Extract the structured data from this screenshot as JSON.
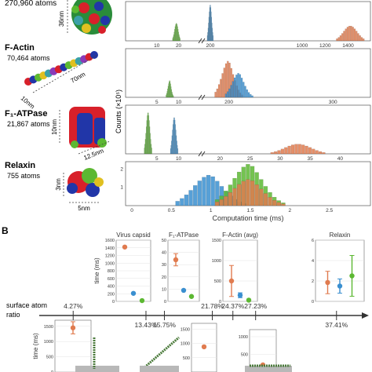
{
  "panel_b_label": "B",
  "molecules": [
    {
      "name": "",
      "atoms": "270,960 atoms",
      "dims": [
        "36nm"
      ]
    },
    {
      "name": "F-Actin",
      "atoms": "70,464 atoms",
      "dims": [
        "70nm",
        "10nm"
      ]
    },
    {
      "name": "F₁-ATPase",
      "atoms": "21,867 atoms",
      "dims": [
        "10nm",
        "12.5nm"
      ]
    },
    {
      "name": "Relaxin",
      "atoms": "755 atoms",
      "dims": [
        "3nm",
        "5nm"
      ]
    }
  ],
  "colors": {
    "orange": "#e07b4f",
    "blue": "#3a8fd0",
    "green": "#5cb832",
    "red": "#d8202a",
    "navy": "#2136a8"
  },
  "ylabel_shared": "Counts (×10⁵)",
  "chart_data": [
    {
      "type": "histogram",
      "panel": "virus-capsid-hist",
      "xticks_left": [
        "10",
        "20"
      ],
      "xticks_right": [
        "200",
        "1000",
        "1200",
        "1400"
      ],
      "ylabel": "",
      "series": [
        {
          "color": "green",
          "peak_x": 19,
          "relative_height": 0.45
        },
        {
          "color": "blue",
          "peak_x": 200,
          "relative_height": 0.92
        },
        {
          "color": "orange",
          "peak_x": 1420,
          "relative_height": 0.38
        }
      ]
    },
    {
      "type": "histogram",
      "panel": "f-actin-hist",
      "xticks_left": [
        "5",
        "10"
      ],
      "xticks_right": [
        "200",
        "300"
      ],
      "ylabel": "",
      "series": [
        {
          "color": "green",
          "peak_x": 8,
          "relative_height": 0.35
        },
        {
          "color": "orange",
          "peak_x": 200,
          "relative_height": 0.75
        },
        {
          "color": "blue",
          "peak_x": 210,
          "relative_height": 0.5
        }
      ]
    },
    {
      "type": "histogram",
      "panel": "f1-atpase-hist",
      "xticks_left": [
        "5",
        "10"
      ],
      "xticks_right": [
        "20",
        "25",
        "30",
        "35",
        "40"
      ],
      "ylabel": "Counts (×10⁵)",
      "series": [
        {
          "color": "green",
          "peak_x": 3,
          "relative_height": 0.85
        },
        {
          "color": "blue",
          "peak_x": 9,
          "relative_height": 0.75
        },
        {
          "color": "orange",
          "peak_x": 33,
          "relative_height": 0.2
        }
      ]
    },
    {
      "type": "histogram",
      "panel": "relaxin-hist",
      "xlabel": "Computation time (ms)",
      "xticks": [
        "0",
        "0.5",
        "1",
        "1.5",
        "2",
        "2.5"
      ],
      "yticks": [
        "1",
        "2"
      ],
      "series": [
        {
          "color": "blue",
          "peak_x": 1.0,
          "relative_height": 0.7
        },
        {
          "color": "green",
          "peak_x": 1.5,
          "relative_height": 0.95
        },
        {
          "color": "orange",
          "peak_x": 1.5,
          "relative_height": 0.6
        }
      ]
    },
    {
      "type": "scatter",
      "panel": "virus-capsid-time",
      "title": "Virus capsid",
      "ylabel": "time (ms)",
      "yticks": [
        "0",
        "200",
        "400",
        "600",
        "800",
        "1000",
        "1200",
        "1400",
        "1600"
      ],
      "ylim": [
        0,
        1600
      ],
      "points": [
        {
          "color": "orange",
          "y": 1420
        },
        {
          "color": "blue",
          "y": 210
        },
        {
          "color": "green",
          "y": 20
        }
      ]
    },
    {
      "type": "scatter",
      "panel": "f1-atpase-time",
      "title": "F₁-ATPase",
      "yticks": [
        "0",
        "10",
        "20",
        "30",
        "40",
        "50"
      ],
      "ylim": [
        0,
        50
      ],
      "points": [
        {
          "color": "orange",
          "y": 34,
          "err": 5
        },
        {
          "color": "blue",
          "y": 9
        },
        {
          "color": "green",
          "y": 4
        }
      ]
    },
    {
      "type": "scatter",
      "panel": "f-actin-time",
      "title": "F-Actin (avg)",
      "yticks": [
        "0",
        "500",
        "1000",
        "1500"
      ],
      "ylim": [
        0,
        1500
      ],
      "points": [
        {
          "color": "orange",
          "y": 500,
          "err": 380
        },
        {
          "color": "blue",
          "y": 150,
          "err": 60
        },
        {
          "color": "green",
          "y": 30
        }
      ]
    },
    {
      "type": "scatter",
      "panel": "relaxin-time",
      "title": "Relaxin",
      "yticks": [
        "0",
        "2",
        "4",
        "6"
      ],
      "ylim": [
        0,
        6
      ],
      "points": [
        {
          "color": "orange",
          "y": 1.85,
          "err": 1.1
        },
        {
          "color": "blue",
          "y": 1.5,
          "err": 0.7
        },
        {
          "color": "green",
          "y": 2.5,
          "err": 2.0
        }
      ]
    },
    {
      "type": "number-line",
      "panel": "surface-atom-ratio",
      "label_lines": [
        "surface atom",
        "ratio"
      ],
      "ticks_above": [
        "4.27%",
        "21.78%",
        "24.37%",
        "27.23%"
      ],
      "ticks_below": [
        "13.43%",
        "15.75%",
        "37.41%"
      ]
    },
    {
      "type": "scatter",
      "panel": "bottom-time-1",
      "ylabel": "time (ms)",
      "yticks": [
        "0",
        "500",
        "1000",
        "1500"
      ],
      "ylim": [
        0,
        1700
      ],
      "points": [
        {
          "color": "orange",
          "y": 1450,
          "err": 200
        }
      ]
    },
    {
      "type": "scatter",
      "panel": "bottom-time-2",
      "yticks": [
        "500",
        "1000",
        "1500"
      ],
      "ylim": [
        0,
        1700
      ],
      "points": [
        {
          "color": "orange",
          "y": 880
        }
      ]
    },
    {
      "type": "scatter",
      "panel": "bottom-time-3",
      "yticks": [
        "500",
        "1000"
      ],
      "ylim": [
        0,
        1200
      ],
      "points": [
        {
          "color": "orange",
          "y": 200
        }
      ]
    }
  ]
}
